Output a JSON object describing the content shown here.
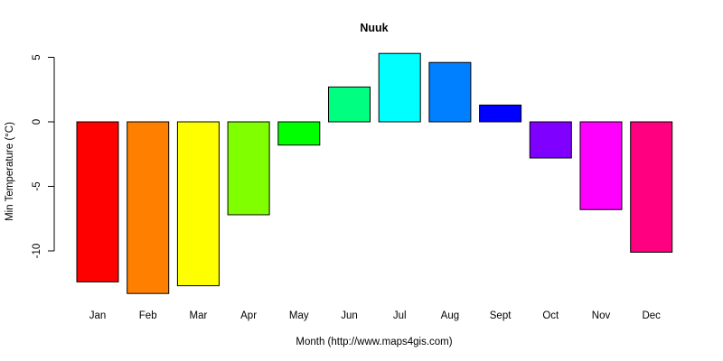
{
  "chart_data": {
    "type": "bar",
    "title": "Nuuk",
    "xlabel": "Month (http://www.maps4gis.com)",
    "ylabel": "Min Temperature (°C)",
    "categories": [
      "Jan",
      "Feb",
      "Mar",
      "Apr",
      "May",
      "Jun",
      "Jul",
      "Aug",
      "Sept",
      "Oct",
      "Nov",
      "Dec"
    ],
    "values": [
      -12.4,
      -13.3,
      -12.7,
      -7.2,
      -1.8,
      2.7,
      5.3,
      4.6,
      1.3,
      -2.8,
      -6.8,
      -10.1
    ],
    "colors": [
      "#FF0000",
      "#FF8000",
      "#FFFF00",
      "#80FF00",
      "#00FF00",
      "#00FF80",
      "#00FFFF",
      "#0080FF",
      "#0000FF",
      "#8000FF",
      "#FF00FF",
      "#FF0080"
    ],
    "yticks": [
      -10,
      -5,
      0,
      5
    ],
    "ylim": [
      -13.3,
      5.3
    ],
    "grid": false,
    "legend": false
  }
}
